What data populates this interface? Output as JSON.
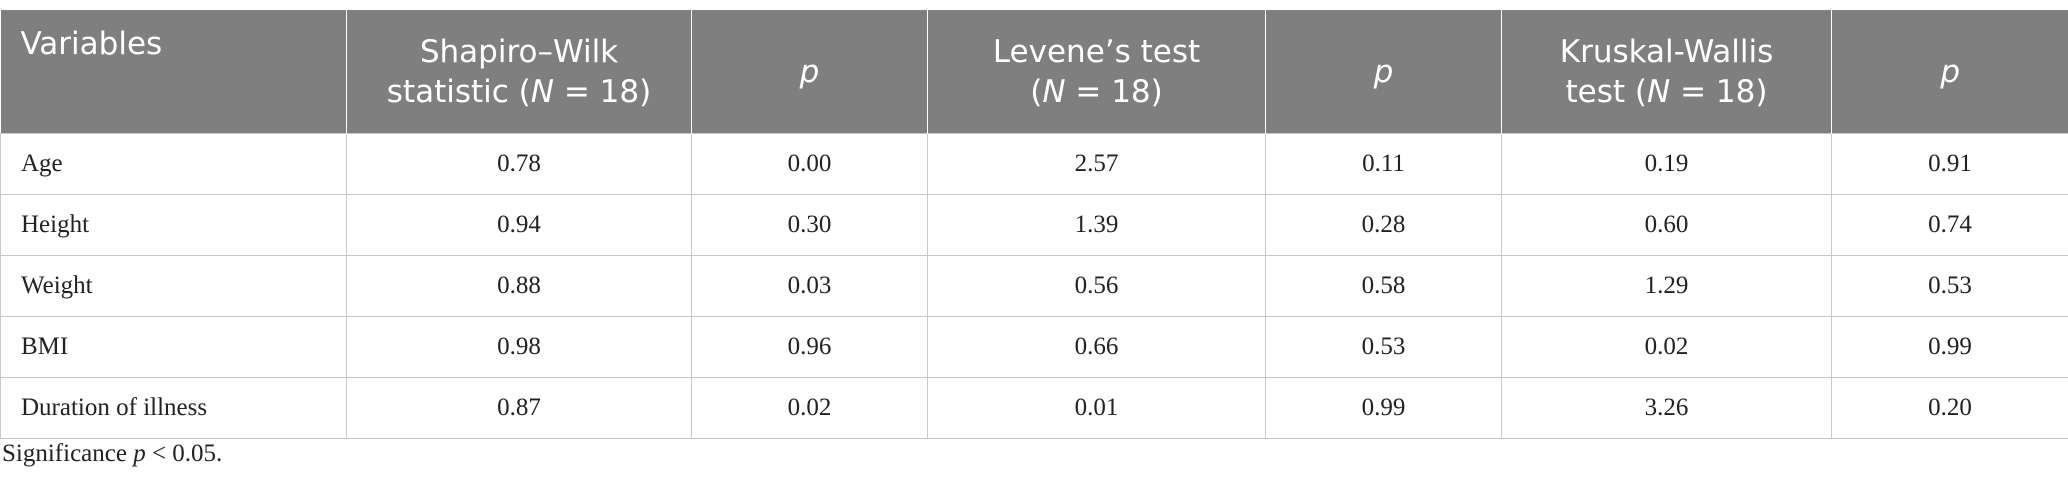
{
  "table": {
    "header": [
      [
        [
          "Variables"
        ]
      ],
      [
        [
          "Shapiro–Wilk"
        ],
        [
          "statistic (",
          "N",
          " = 18)"
        ]
      ],
      [
        [
          "",
          "p"
        ]
      ],
      [
        [
          "Levene’s test"
        ],
        [
          "(",
          "N",
          " = 18)"
        ]
      ],
      [
        [
          "",
          "p"
        ]
      ],
      [
        [
          "Kruskal-Wallis"
        ],
        [
          "test (",
          "N",
          " = 18)"
        ]
      ],
      [
        [
          "",
          "p"
        ]
      ]
    ],
    "rows": [
      [
        "Age",
        "0.78",
        "0.00",
        "2.57",
        "0.11",
        "0.19",
        "0.91"
      ],
      [
        "Height",
        "0.94",
        "0.30",
        "1.39",
        "0.28",
        "0.60",
        "0.74"
      ],
      [
        "Weight",
        "0.88",
        "0.03",
        "0.56",
        "0.58",
        "1.29",
        "0.53"
      ],
      [
        "BMI",
        "0.98",
        "0.96",
        "0.66",
        "0.53",
        "0.02",
        "0.99"
      ],
      [
        "Duration of illness",
        "0.87",
        "0.02",
        "0.01",
        "0.99",
        "3.26",
        "0.20"
      ]
    ]
  },
  "footnote": [
    "Significance ",
    "p",
    " < 0.05."
  ]
}
